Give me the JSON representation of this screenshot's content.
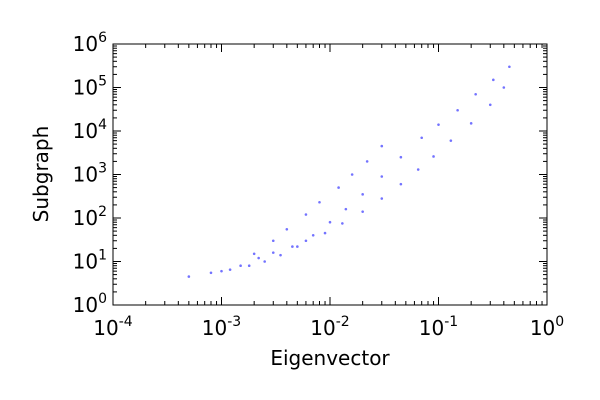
{
  "chart_data": {
    "type": "scatter",
    "title": "",
    "xlabel": "Eigenvector",
    "ylabel": "Subgraph",
    "xscale": "log",
    "yscale": "log",
    "xlim": [
      0.0001,
      1
    ],
    "ylim": [
      1,
      1000000
    ],
    "xticks": [
      {
        "base": "10",
        "exp": "-4",
        "value": 0.0001
      },
      {
        "base": "10",
        "exp": "-3",
        "value": 0.001
      },
      {
        "base": "10",
        "exp": "-2",
        "value": 0.01
      },
      {
        "base": "10",
        "exp": "-1",
        "value": 0.1
      },
      {
        "base": "10",
        "exp": "0",
        "value": 1
      }
    ],
    "yticks": [
      {
        "base": "10",
        "exp": "0",
        "value": 1
      },
      {
        "base": "10",
        "exp": "1",
        "value": 10
      },
      {
        "base": "10",
        "exp": "2",
        "value": 100
      },
      {
        "base": "10",
        "exp": "3",
        "value": 1000
      },
      {
        "base": "10",
        "exp": "4",
        "value": 10000
      },
      {
        "base": "10",
        "exp": "5",
        "value": 100000
      },
      {
        "base": "10",
        "exp": "6",
        "value": 1000000
      }
    ],
    "grid": false,
    "legend": "none",
    "marker_color": "#0000ff",
    "series": [
      {
        "points": [
          [
            0.0005,
            4.5
          ],
          [
            0.0008,
            5.5
          ],
          [
            0.0012,
            6.5
          ],
          [
            0.0018,
            8
          ],
          [
            0.0025,
            10
          ],
          [
            0.0035,
            14
          ],
          [
            0.005,
            22
          ],
          [
            0.007,
            40
          ],
          [
            0.01,
            80
          ],
          [
            0.014,
            160
          ],
          [
            0.02,
            350
          ],
          [
            0.03,
            900
          ],
          [
            0.045,
            2500
          ],
          [
            0.07,
            7000
          ],
          [
            0.1,
            14000
          ],
          [
            0.15,
            30000
          ],
          [
            0.22,
            70000
          ],
          [
            0.32,
            150000
          ],
          [
            0.45,
            300000
          ],
          [
            0.002,
            15
          ],
          [
            0.003,
            30
          ],
          [
            0.004,
            55
          ],
          [
            0.006,
            120
          ],
          [
            0.008,
            230
          ],
          [
            0.012,
            500
          ],
          [
            0.016,
            1000
          ],
          [
            0.022,
            2000
          ],
          [
            0.03,
            4500
          ],
          [
            0.001,
            6
          ],
          [
            0.0015,
            8
          ],
          [
            0.0022,
            12
          ],
          [
            0.003,
            16
          ],
          [
            0.0045,
            22
          ],
          [
            0.006,
            30
          ],
          [
            0.009,
            45
          ],
          [
            0.013,
            75
          ],
          [
            0.02,
            140
          ],
          [
            0.03,
            280
          ],
          [
            0.045,
            600
          ],
          [
            0.065,
            1300
          ],
          [
            0.09,
            2600
          ],
          [
            0.13,
            6000
          ],
          [
            0.2,
            15000
          ],
          [
            0.3,
            40000
          ],
          [
            0.4,
            100000
          ]
        ]
      }
    ]
  }
}
